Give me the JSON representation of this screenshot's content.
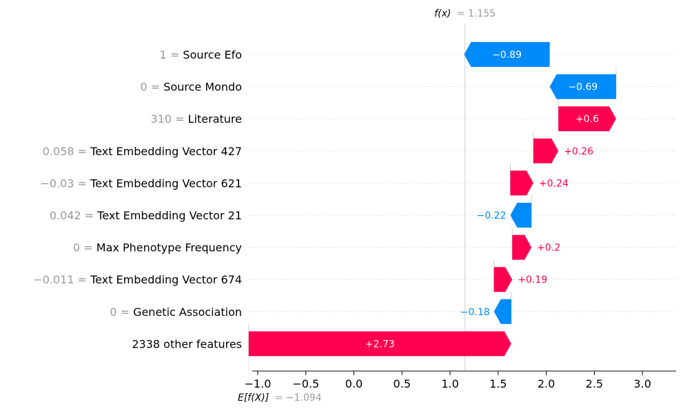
{
  "chart_data": {
    "type": "waterfall",
    "fx_label": "f(x)",
    "fx_value_text": "= 1.155",
    "fx_value": 1.155,
    "base_label": "E[f(X)]",
    "base_value_text": "= −1.094",
    "base_value": -1.094,
    "xlim": [
      -1.1,
      3.35
    ],
    "xticks": [
      -1.0,
      -0.5,
      0.0,
      0.5,
      1.0,
      1.5,
      2.0,
      2.5,
      3.0
    ],
    "xtick_labels": [
      "−1.0",
      "−0.5",
      "0.0",
      "0.5",
      "1.0",
      "1.5",
      "2.0",
      "2.5",
      "3.0"
    ],
    "colors": {
      "positive": "#ff0051",
      "negative": "#008bfb",
      "muted": "#999999",
      "grid": "#cccccc"
    },
    "features": [
      {
        "value": "1",
        "name": "Source Efo",
        "contribution": -0.89,
        "label": "−0.89"
      },
      {
        "value": "0",
        "name": "Source Mondo",
        "contribution": -0.69,
        "label": "−0.69"
      },
      {
        "value": "310",
        "name": "Literature",
        "contribution": 0.6,
        "label": "+0.6"
      },
      {
        "value": "0.058",
        "name": "Text Embedding Vector 427",
        "contribution": 0.26,
        "label": "+0.26"
      },
      {
        "value": "−0.03",
        "name": "Text Embedding Vector 621",
        "contribution": 0.24,
        "label": "+0.24"
      },
      {
        "value": "0.042",
        "name": "Text Embedding Vector 21",
        "contribution": -0.22,
        "label": "−0.22"
      },
      {
        "value": "0",
        "name": "Max Phenotype Frequency",
        "contribution": 0.2,
        "label": "+0.2"
      },
      {
        "value": "−0.011",
        "name": "Text Embedding Vector 674",
        "contribution": 0.19,
        "label": "+0.19"
      },
      {
        "value": "0",
        "name": "Genetic Association",
        "contribution": -0.18,
        "label": "−0.18"
      },
      {
        "value": "",
        "name": "2338 other features",
        "contribution": 2.73,
        "label": "+2.73"
      }
    ]
  }
}
